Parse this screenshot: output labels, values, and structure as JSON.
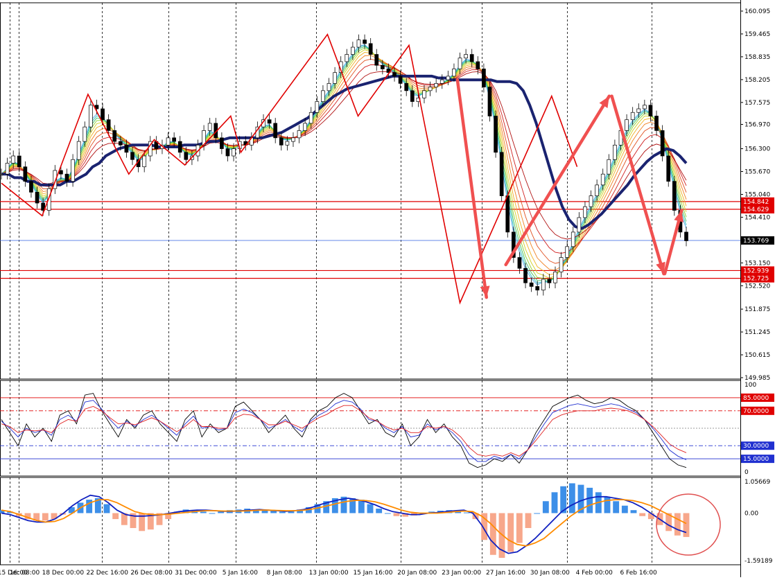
{
  "colors": {
    "background": "#ffffff",
    "grid": "#000000",
    "candle_up": "#ffffff",
    "candle_down": "#000000",
    "zigzag": "#e00000",
    "arrow": "#f05050",
    "ma_thick": "#1a2370",
    "resistance": "#e00000",
    "current_price": "#3060e0",
    "hist_up": "#3d8fe8",
    "hist_down": "#f7a78b",
    "macd_line": "#1020c0",
    "signal_line": "#ff8c00",
    "stoch_k": "#000000",
    "stoch_d": "#2030d0",
    "stoch_slow": "#e02020",
    "highlight_circle": "#e05050"
  },
  "chart_data": [
    {
      "type": "candlestick",
      "panel": "price",
      "y_ticks": [
        "160.095",
        "159.465",
        "158.835",
        "158.205",
        "157.575",
        "156.970",
        "156.300",
        "155.670",
        "155.040",
        "154.410",
        "153.150",
        "152.520",
        "151.875",
        "151.245",
        "150.615",
        "149.985"
      ],
      "ylim": [
        149.985,
        160.095
      ],
      "x_ticks": [
        "16:00",
        "15 Dec 08:00",
        "18 Dec 00:00",
        "22 Dec 16:00",
        "26 Dec 08:00",
        "31 Dec 00:00",
        "5 Jan 16:00",
        "8 Jan 08:00",
        "13 Jan 00:00",
        "15 Jan 16:00",
        "20 Jan 08:00",
        "23 Jan 00:00",
        "27 Jan 16:00",
        "30 Jan 08:00",
        "4 Feb 00:00",
        "6 Feb 16:00"
      ],
      "price_levels": [
        {
          "label": "154.842",
          "value": 154.842,
          "kind": "resistance"
        },
        {
          "label": "154.629",
          "value": 154.629,
          "kind": "resistance"
        },
        {
          "label": "152.939",
          "value": 152.939,
          "kind": "support"
        },
        {
          "label": "152.725",
          "value": 152.725,
          "kind": "support"
        }
      ],
      "current_price": {
        "label": "153.769",
        "value": 153.769
      },
      "zigzag": [
        [
          0,
          155.35
        ],
        [
          8,
          154.45
        ],
        [
          17,
          157.8
        ],
        [
          25,
          155.6
        ],
        [
          30,
          156.55
        ],
        [
          36,
          155.85
        ],
        [
          45,
          157.2
        ],
        [
          47,
          156.2
        ],
        [
          64,
          159.45
        ],
        [
          70,
          157.2
        ],
        [
          80,
          159.15
        ],
        [
          90,
          152.05
        ],
        [
          108,
          157.75
        ],
        [
          113,
          155.8
        ]
      ],
      "arrows": [
        {
          "from": [
            89.5,
            158.2
          ],
          "to": [
            95.2,
            152.2
          ]
        },
        {
          "from": [
            99,
            153.1
          ],
          "to": [
            119.3,
            157.75
          ]
        },
        {
          "from": [
            119.8,
            157.75
          ],
          "to": [
            130,
            152.85
          ]
        },
        {
          "from": [
            130.2,
            152.85
          ],
          "to": [
            133.5,
            154.6
          ]
        }
      ],
      "close": [
        155.6,
        155.9,
        156.1,
        155.8,
        155.4,
        155.1,
        154.8,
        154.6,
        155.2,
        155.7,
        155.6,
        155.4,
        156.0,
        156.5,
        156.9,
        157.5,
        157.4,
        157.1,
        156.8,
        156.5,
        156.4,
        156.2,
        156.0,
        155.8,
        156.1,
        156.5,
        156.3,
        156.4,
        156.6,
        156.5,
        156.2,
        156.0,
        156.1,
        156.4,
        156.8,
        157.0,
        156.6,
        156.3,
        156.1,
        156.3,
        156.5,
        156.4,
        156.6,
        156.9,
        157.1,
        157.0,
        156.6,
        156.4,
        156.5,
        156.6,
        156.8,
        157.0,
        157.3,
        157.6,
        157.9,
        158.1,
        158.4,
        158.7,
        158.9,
        159.1,
        159.3,
        159.2,
        158.9,
        158.6,
        158.5,
        158.4,
        158.3,
        158.1,
        157.9,
        157.6,
        157.7,
        157.9,
        158.0,
        158.1,
        158.2,
        158.3,
        158.5,
        158.8,
        158.9,
        158.7,
        158.5,
        158.0,
        157.2,
        156.2,
        155.0,
        154.0,
        153.3,
        153.0,
        152.6,
        152.5,
        152.4,
        152.7,
        152.6,
        152.9,
        153.3,
        153.6,
        154.0,
        154.4,
        154.7,
        155.0,
        155.3,
        155.6,
        156.0,
        156.4,
        156.8,
        157.1,
        157.3,
        157.4,
        157.5,
        157.2,
        156.8,
        156.1,
        155.4,
        154.6,
        154.0,
        153.76
      ],
      "ma_thick": [
        155.6,
        155.6,
        155.5,
        155.5,
        155.4,
        155.4,
        155.3,
        155.3,
        155.3,
        155.3,
        155.4,
        155.4,
        155.5,
        155.6,
        155.8,
        155.9,
        156.1,
        156.2,
        156.3,
        156.35,
        156.4,
        156.4,
        156.4,
        156.4,
        156.35,
        156.35,
        156.35,
        156.35,
        156.4,
        156.4,
        156.4,
        156.45,
        156.5,
        156.5,
        156.55,
        156.6,
        156.6,
        156.6,
        156.6,
        156.6,
        156.6,
        156.65,
        156.7,
        156.75,
        156.85,
        156.95,
        157.05,
        157.15,
        157.3,
        157.45,
        157.6,
        157.75,
        157.85,
        157.95,
        158.0,
        158.05,
        158.1,
        158.15,
        158.2,
        158.25,
        158.3,
        158.3,
        158.3,
        158.3,
        158.3,
        158.3,
        158.3,
        158.25,
        158.25,
        158.2,
        158.2,
        158.2,
        158.2,
        158.2,
        158.2,
        158.2,
        158.15,
        158.15,
        158.15,
        158.1,
        157.9,
        157.5,
        157.0,
        156.4,
        155.8,
        155.2,
        154.7,
        154.35,
        154.15,
        154.1,
        154.2,
        154.35,
        154.5,
        154.7,
        154.9,
        155.1,
        155.3,
        155.55,
        155.75,
        155.95,
        156.1,
        156.2,
        156.3,
        156.25,
        156.1,
        155.9
      ]
    },
    {
      "type": "line",
      "panel": "stochastic",
      "y_ticks": [
        "100",
        "0"
      ],
      "ylim": [
        0,
        100
      ],
      "levels": [
        {
          "label": "85.0000",
          "value": 85
        },
        {
          "label": "70.0000",
          "value": 70
        },
        {
          "label": "30.0000",
          "value": 30
        },
        {
          "label": "15.0000",
          "value": 15
        }
      ],
      "series": [
        {
          "values": [
            60,
            45,
            30,
            55,
            40,
            50,
            35,
            65,
            70,
            55,
            88,
            90,
            70,
            55,
            40,
            60,
            50,
            65,
            70,
            55,
            45,
            35,
            60,
            70,
            40,
            55,
            45,
            50,
            75,
            80,
            70,
            60,
            45,
            55,
            65,
            50,
            40,
            60,
            70,
            75,
            85,
            90,
            85,
            70,
            55,
            60,
            45,
            40,
            55,
            30,
            40,
            60,
            45,
            55,
            40,
            30,
            10,
            5,
            8,
            15,
            12,
            20,
            10,
            25,
            45,
            60,
            75,
            80,
            85,
            88,
            82,
            78,
            80,
            85,
            82,
            75,
            70,
            60,
            45,
            30,
            15,
            8,
            5
          ]
        },
        {
          "values": [
            58,
            50,
            40,
            50,
            45,
            48,
            42,
            60,
            65,
            58,
            80,
            82,
            72,
            60,
            50,
            58,
            52,
            60,
            65,
            58,
            50,
            42,
            55,
            64,
            50,
            52,
            48,
            50,
            68,
            72,
            68,
            60,
            50,
            54,
            60,
            52,
            46,
            58,
            65,
            70,
            78,
            82,
            80,
            72,
            60,
            58,
            50,
            45,
            52,
            40,
            42,
            55,
            48,
            52,
            45,
            35,
            20,
            12,
            12,
            18,
            15,
            20,
            15,
            25,
            40,
            55,
            68,
            72,
            76,
            78,
            76,
            74,
            76,
            78,
            76,
            72,
            68,
            60,
            50,
            38,
            25,
            18,
            14
          ]
        },
        {
          "values": [
            55,
            52,
            45,
            48,
            47,
            48,
            45,
            55,
            60,
            58,
            72,
            75,
            70,
            62,
            55,
            56,
            54,
            58,
            62,
            58,
            52,
            46,
            52,
            60,
            52,
            52,
            50,
            50,
            62,
            66,
            65,
            60,
            54,
            54,
            58,
            54,
            50,
            56,
            62,
            66,
            72,
            76,
            76,
            70,
            62,
            58,
            52,
            48,
            50,
            45,
            45,
            52,
            50,
            52,
            48,
            40,
            28,
            20,
            18,
            20,
            18,
            22,
            18,
            25,
            36,
            48,
            60,
            65,
            68,
            70,
            70,
            70,
            72,
            73,
            72,
            70,
            66,
            60,
            52,
            42,
            32,
            26,
            22
          ]
        }
      ]
    },
    {
      "type": "bar",
      "panel": "macd",
      "y_ticks": [
        "1.05669",
        "0.00",
        "-1.59189"
      ],
      "ylim": [
        -1.59189,
        1.05669
      ],
      "histogram": [
        0.1,
        0.05,
        -0.1,
        -0.2,
        -0.25,
        -0.25,
        -0.2,
        -0.05,
        0.2,
        0.35,
        0.45,
        0.5,
        0.3,
        -0.2,
        -0.4,
        -0.5,
        -0.6,
        -0.55,
        -0.4,
        -0.2,
        0.05,
        0.12,
        0.1,
        0.05,
        0.0,
        0.05,
        0.1,
        0.12,
        0.15,
        0.12,
        0.1,
        0.08,
        0.05,
        0.08,
        0.12,
        0.2,
        0.3,
        0.4,
        0.5,
        0.55,
        0.5,
        0.45,
        0.3,
        0.15,
        0.0,
        -0.1,
        -0.12,
        -0.08,
        0.0,
        0.05,
        0.08,
        0.1,
        0.08,
        0.02,
        -0.2,
        -0.9,
        -1.4,
        -1.5,
        -1.3,
        -1.0,
        -0.5,
        0.0,
        0.4,
        0.7,
        0.9,
        1.0,
        0.95,
        0.85,
        0.7,
        0.55,
        0.4,
        0.25,
        0.1,
        -0.1,
        -0.2,
        -0.4,
        -0.6,
        -0.75,
        -0.8
      ],
      "series": [
        {
          "values": [
            0.0,
            -0.05,
            -0.15,
            -0.25,
            -0.3,
            -0.3,
            -0.2,
            0.0,
            0.25,
            0.45,
            0.6,
            0.55,
            0.35,
            0.1,
            -0.05,
            -0.1,
            -0.1,
            -0.08,
            -0.05,
            0.0,
            0.05,
            0.08,
            0.1,
            0.1,
            0.08,
            0.06,
            0.06,
            0.08,
            0.1,
            0.12,
            0.1,
            0.08,
            0.06,
            0.08,
            0.12,
            0.2,
            0.3,
            0.38,
            0.45,
            0.5,
            0.45,
            0.38,
            0.28,
            0.15,
            0.05,
            0.0,
            -0.05,
            -0.05,
            0.0,
            0.02,
            0.05,
            0.08,
            0.1,
            0.0,
            -0.4,
            -0.9,
            -1.2,
            -1.35,
            -1.3,
            -1.1,
            -0.85,
            -0.55,
            -0.25,
            0.05,
            0.25,
            0.4,
            0.5,
            0.55,
            0.55,
            0.5,
            0.45,
            0.35,
            0.2,
            0.0,
            -0.2,
            -0.4,
            -0.55,
            -0.65
          ]
        },
        {
          "values": [
            0.1,
            0.05,
            -0.05,
            -0.15,
            -0.25,
            -0.3,
            -0.28,
            -0.18,
            0.0,
            0.2,
            0.35,
            0.45,
            0.45,
            0.35,
            0.2,
            0.05,
            -0.02,
            -0.05,
            -0.05,
            -0.03,
            0.0,
            0.03,
            0.06,
            0.08,
            0.08,
            0.07,
            0.07,
            0.07,
            0.08,
            0.1,
            0.1,
            0.09,
            0.08,
            0.08,
            0.1,
            0.14,
            0.2,
            0.27,
            0.34,
            0.4,
            0.43,
            0.42,
            0.38,
            0.3,
            0.2,
            0.1,
            0.03,
            0.0,
            0.0,
            0.0,
            0.02,
            0.05,
            0.07,
            0.05,
            -0.1,
            -0.35,
            -0.65,
            -0.9,
            -1.05,
            -1.1,
            -1.0,
            -0.85,
            -0.6,
            -0.35,
            -0.1,
            0.1,
            0.25,
            0.35,
            0.42,
            0.45,
            0.45,
            0.42,
            0.35,
            0.25,
            0.1,
            -0.05,
            -0.2,
            -0.35
          ]
        }
      ]
    }
  ]
}
